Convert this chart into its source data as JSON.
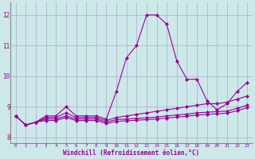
{
  "xlabel": "Windchill (Refroidissement éolien,°C)",
  "bg_color": "#cce8e8",
  "line_color": "#990099",
  "grid_color": "#aaaacc",
  "tick_color": "#990099",
  "label_color": "#990099",
  "xlim": [
    -0.5,
    23.5
  ],
  "ylim": [
    7.8,
    12.4
  ],
  "yticks": [
    8,
    9,
    10,
    11,
    12
  ],
  "xticks": [
    0,
    1,
    2,
    3,
    4,
    5,
    6,
    7,
    8,
    9,
    10,
    11,
    12,
    13,
    14,
    15,
    16,
    17,
    18,
    19,
    20,
    21,
    22,
    23
  ],
  "series": [
    [
      8.7,
      8.4,
      8.5,
      8.7,
      8.7,
      9.0,
      8.7,
      8.7,
      8.7,
      8.6,
      9.5,
      10.6,
      11.0,
      12.0,
      12.0,
      11.7,
      10.5,
      9.9,
      9.9,
      9.2,
      8.9,
      9.1,
      9.5,
      9.8
    ],
    [
      8.7,
      8.4,
      8.5,
      8.65,
      8.65,
      8.8,
      8.65,
      8.65,
      8.65,
      8.55,
      8.65,
      8.7,
      8.75,
      8.8,
      8.85,
      8.9,
      8.95,
      9.0,
      9.05,
      9.1,
      9.1,
      9.15,
      9.25,
      9.35
    ],
    [
      8.7,
      8.4,
      8.5,
      8.6,
      8.6,
      8.7,
      8.6,
      8.6,
      8.6,
      8.5,
      8.58,
      8.6,
      8.62,
      8.64,
      8.66,
      8.7,
      8.73,
      8.76,
      8.8,
      8.82,
      8.84,
      8.86,
      8.95,
      9.05
    ],
    [
      8.7,
      8.4,
      8.5,
      8.55,
      8.55,
      8.65,
      8.55,
      8.55,
      8.55,
      8.45,
      8.52,
      8.54,
      8.56,
      8.58,
      8.6,
      8.63,
      8.66,
      8.69,
      8.73,
      8.75,
      8.77,
      8.79,
      8.87,
      8.97
    ]
  ]
}
